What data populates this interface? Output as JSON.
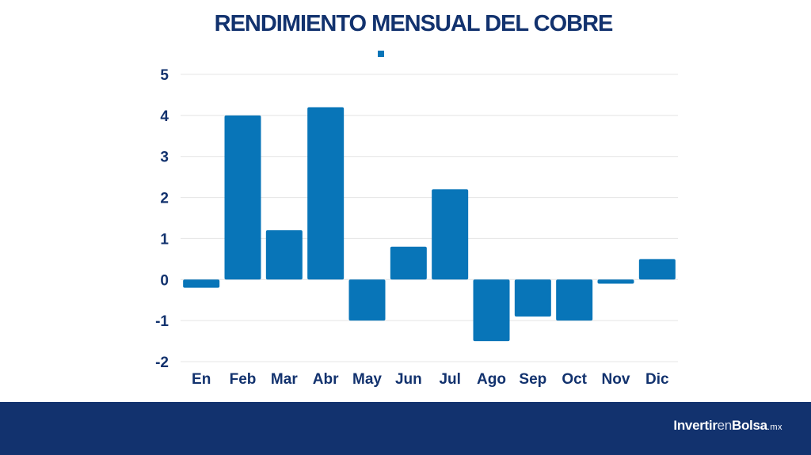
{
  "colors": {
    "bar": "#0875b8",
    "title": "#12326e",
    "footer_band": "#12326e",
    "grid": "#e4e4e4",
    "background": "#ffffff"
  },
  "chart_data": {
    "type": "bar",
    "title": "RENDIMIENTO MENSUAL DEL COBRE",
    "categories": [
      "En",
      "Feb",
      "Mar",
      "Abr",
      "May",
      "Jun",
      "Jul",
      "Ago",
      "Sep",
      "Oct",
      "Nov",
      "Dic"
    ],
    "values": [
      -0.2,
      4.0,
      1.2,
      4.2,
      -1.0,
      0.8,
      2.2,
      -1.5,
      -0.9,
      -1.0,
      -0.1,
      0.5
    ],
    "xlabel": "",
    "ylabel": "",
    "ylim": [
      -2,
      5
    ],
    "yticks": [
      5,
      4,
      3,
      2,
      1,
      0,
      -1,
      -2
    ],
    "grid": true,
    "legend": "top-center"
  },
  "footer": {
    "brand_part1": "Invertir",
    "brand_part2": "en",
    "brand_part3": "Bolsa",
    "brand_part4": ".mx"
  }
}
